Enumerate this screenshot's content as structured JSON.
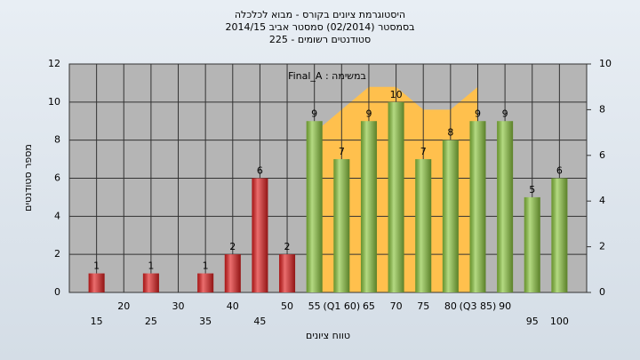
{
  "chart_data": {
    "type": "bar",
    "title": "היסטוגרמת ציונים בקורס - מבוא לכלכלה",
    "subtitle": [
      "בסמסטר  (02/2014)  סמסטר אביב 2014/15",
      "סטודנטים רשומים - 225"
    ],
    "annotation": "Final_A : במשימה",
    "x_label": "טווח ציונים",
    "y_label": "מספר סטודנטים",
    "x": [
      15,
      20,
      25,
      30,
      35,
      40,
      45,
      50,
      55,
      60,
      65,
      70,
      75,
      80,
      85,
      90,
      95,
      100
    ],
    "values": [
      1,
      null,
      1,
      null,
      1,
      2,
      6,
      2,
      9,
      7,
      9,
      10,
      7,
      8,
      9,
      9,
      5,
      6
    ],
    "colors": [
      "#e02020",
      "#e02020",
      "#e02020",
      "#e02020",
      "#e02020",
      "#e02020",
      "#e02020",
      "#e02020",
      "#8cc63f",
      "#8cc63f",
      "#8cc63f",
      "#8cc63f",
      "#8cc63f",
      "#8cc63f",
      "#8cc63f",
      "#8cc63f",
      "#8cc63f",
      "#8cc63f"
    ],
    "xlim": [
      10,
      105
    ],
    "xticks": [
      15,
      20,
      25,
      30,
      35,
      40,
      45,
      50,
      55,
      {
        "value": 60,
        "label": "(Q1 60)"
      },
      65,
      70,
      75,
      80,
      {
        "value": 85,
        "label": "(Q3 85)"
      },
      90,
      95,
      100
    ],
    "ylim": [
      0,
      12
    ],
    "yticks": [
      0,
      2,
      4,
      6,
      8,
      10,
      12
    ],
    "y2lim": [
      0,
      10
    ],
    "y2ticks": [
      0,
      2,
      4,
      6,
      8,
      10
    ],
    "area": {
      "x": [
        55,
        65,
        70,
        75,
        80,
        85
      ],
      "values": [
        7,
        9,
        9,
        8,
        8,
        9
      ],
      "color": "#ffc04d",
      "axis": "y2"
    },
    "grid": true
  }
}
